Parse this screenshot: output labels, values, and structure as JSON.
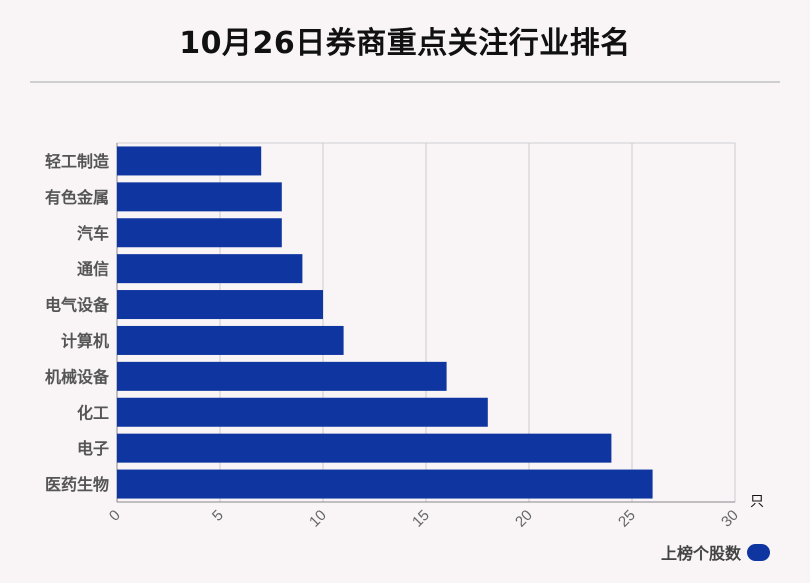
{
  "chart_data": {
    "type": "bar",
    "orientation": "horizontal",
    "title": "10月26日券商重点关注行业排名",
    "categories": [
      "轻工制造",
      "有色金属",
      "汽车",
      "通信",
      "电气设备",
      "计算机",
      "机械设备",
      "化工",
      "电子",
      "医药生物"
    ],
    "series": [
      {
        "name": "上榜个股数",
        "values": [
          7,
          8,
          8,
          9,
          10,
          11,
          16,
          18,
          24,
          26
        ]
      }
    ],
    "xlim": [
      0,
      30
    ],
    "xticks": [
      "0",
      "5",
      "10",
      "15",
      "20",
      "25",
      "30"
    ],
    "xunit": "只",
    "grid": true,
    "legend": "bottom-right",
    "colors": {
      "bar": "#0e35a0",
      "background": "#f9f5f7",
      "grid": "#cccccc"
    }
  }
}
